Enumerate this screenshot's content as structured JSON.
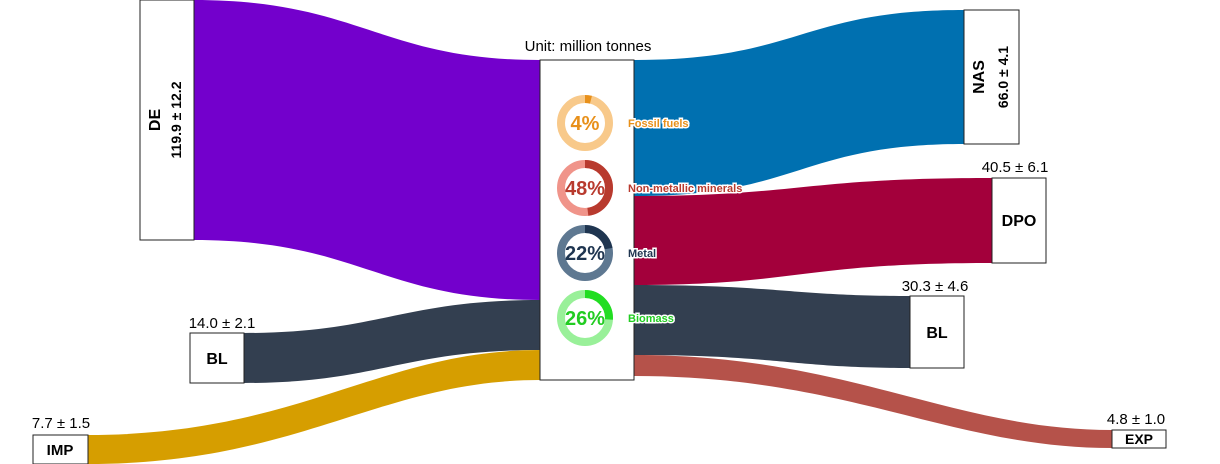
{
  "unit_label": "Unit: million tonnes",
  "nodes": {
    "de": {
      "name": "DE",
      "value": "119.9 ± 12.2"
    },
    "bl_in": {
      "name": "BL",
      "value": "14.0 ± 2.1"
    },
    "imp": {
      "name": "IMP",
      "value": "7.7 ± 1.5"
    },
    "nas": {
      "name": "NAS",
      "value": "66.0 ± 4.1"
    },
    "dpo": {
      "name": "DPO",
      "value": "40.5 ± 6.1"
    },
    "bl_out": {
      "name": "BL",
      "value": "30.3 ± 4.6"
    },
    "exp": {
      "name": "EXP",
      "value": "4.8 ± 1.0"
    }
  },
  "flow_colors": {
    "de": "#7300cc",
    "bl_in": "#333f50",
    "imp": "#d69e00",
    "nas": "#0070b0",
    "dpo": "#a3003b",
    "bl_out": "#333f50",
    "exp": "#b5524a"
  },
  "composition": [
    {
      "label": "Fossil fuels",
      "percent": 4,
      "display": "4%",
      "color": "#e8901a",
      "track": "#f8c98a",
      "text_color": "#e8901a"
    },
    {
      "label": "Non-metallic minerals",
      "percent": 48,
      "display": "48%",
      "color": "#b83a2e",
      "track": "#f0948a",
      "text_color": "#b83a2e"
    },
    {
      "label": "Metal",
      "percent": 22,
      "display": "22%",
      "color": "#1f3550",
      "track": "#5e7891",
      "text_color": "#1f3550"
    },
    {
      "label": "Biomass",
      "percent": 26,
      "display": "26%",
      "color": "#22dd22",
      "track": "#99f099",
      "text_color": "#22cc22"
    }
  ]
}
